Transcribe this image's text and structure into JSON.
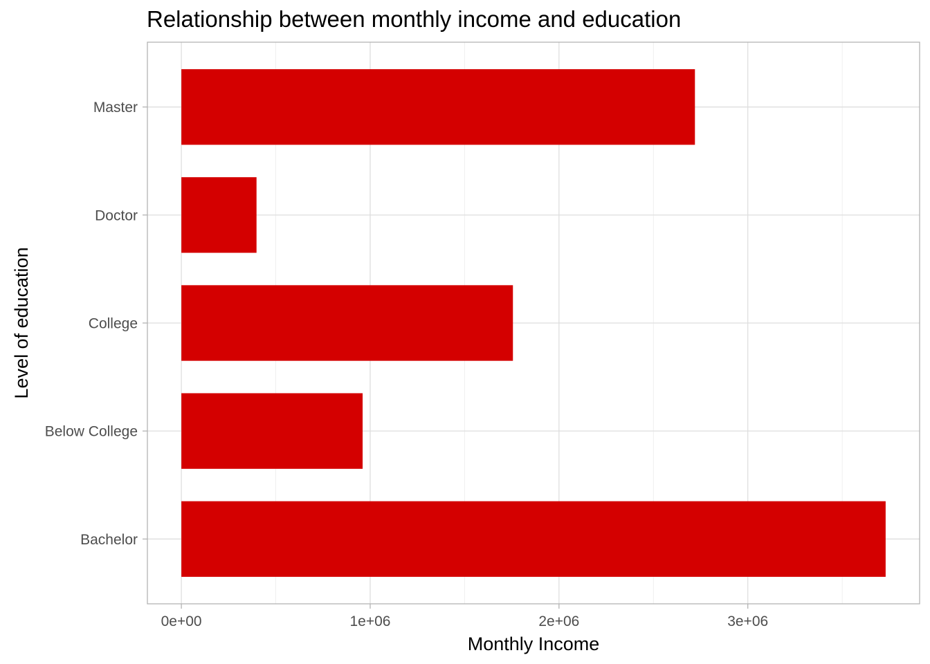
{
  "chart_data": {
    "type": "bar",
    "orientation": "horizontal",
    "title": "Relationship between monthly income and education",
    "xlabel": "Monthly Income",
    "ylabel": "Level of education",
    "categories": [
      "Bachelor",
      "Below College",
      "College",
      "Doctor",
      "Master"
    ],
    "values": [
      3730000,
      960000,
      1756000,
      398000,
      2720000
    ],
    "xlim": [
      -180000,
      3910000
    ],
    "x_ticks": [
      0,
      1000000,
      2000000,
      3000000
    ],
    "x_tick_labels": [
      "0e+00",
      "1e+06",
      "2e+06",
      "3e+06"
    ],
    "grid": true,
    "legend": "none",
    "bar_color": "#d40000"
  }
}
